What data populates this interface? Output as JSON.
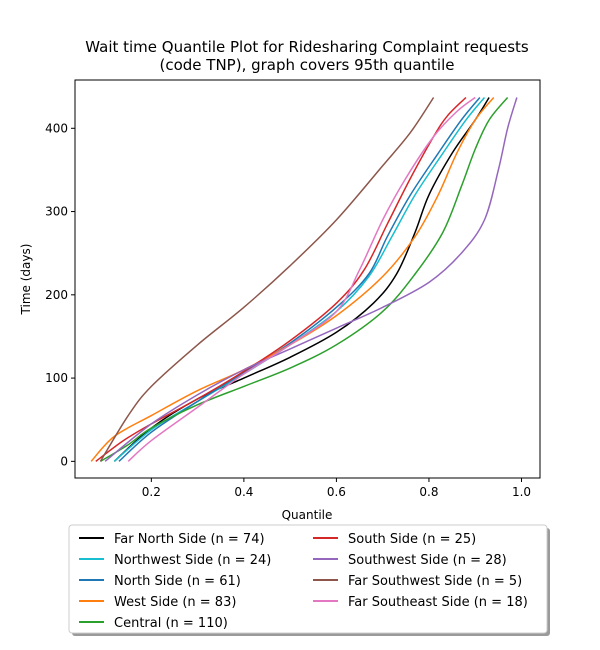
{
  "chart_data": {
    "type": "line",
    "title": [
      "Wait time Quantile Plot for Ridesharing Complaint  requests",
      "(code TNP), graph covers 95th quantile"
    ],
    "xlabel": "Quantile",
    "ylabel": "Time (days)",
    "xlim": [
      0.035,
      1.04
    ],
    "ylim": [
      -20,
      458
    ],
    "xticks": [
      0.2,
      0.4,
      0.6,
      0.8,
      1.0
    ],
    "xtick_labels": [
      "0.2",
      "0.4",
      "0.6",
      "0.8",
      "1.0"
    ],
    "yticks": [
      0,
      100,
      200,
      300,
      400
    ],
    "ytick_labels": [
      "0",
      "100",
      "200",
      "300",
      "400"
    ],
    "grid": false,
    "legend_position": "below",
    "series": [
      {
        "name": "Far North Side (n = 74)",
        "color": "#000000",
        "points": [
          [
            0.12,
            0
          ],
          [
            0.2,
            40
          ],
          [
            0.3,
            75
          ],
          [
            0.4,
            100
          ],
          [
            0.5,
            125
          ],
          [
            0.6,
            155
          ],
          [
            0.68,
            190
          ],
          [
            0.73,
            225
          ],
          [
            0.77,
            275
          ],
          [
            0.8,
            320
          ],
          [
            0.85,
            370
          ],
          [
            0.9,
            410
          ],
          [
            0.93,
            437
          ]
        ]
      },
      {
        "name": "Northwest Side (n = 24)",
        "color": "#17becf",
        "points": [
          [
            0.12,
            0
          ],
          [
            0.2,
            38
          ],
          [
            0.3,
            72
          ],
          [
            0.4,
            105
          ],
          [
            0.5,
            140
          ],
          [
            0.6,
            180
          ],
          [
            0.67,
            222
          ],
          [
            0.72,
            270
          ],
          [
            0.77,
            320
          ],
          [
            0.83,
            370
          ],
          [
            0.88,
            410
          ],
          [
            0.92,
            437
          ]
        ]
      },
      {
        "name": "North Side (n = 61)",
        "color": "#1f77b4",
        "points": [
          [
            0.13,
            0
          ],
          [
            0.2,
            35
          ],
          [
            0.3,
            72
          ],
          [
            0.4,
            107
          ],
          [
            0.5,
            142
          ],
          [
            0.6,
            185
          ],
          [
            0.67,
            225
          ],
          [
            0.71,
            270
          ],
          [
            0.76,
            320
          ],
          [
            0.82,
            370
          ],
          [
            0.87,
            410
          ],
          [
            0.91,
            437
          ]
        ]
      },
      {
        "name": "West Side (n = 83)",
        "color": "#ff7f0e",
        "points": [
          [
            0.07,
            0
          ],
          [
            0.12,
            30
          ],
          [
            0.2,
            55
          ],
          [
            0.3,
            85
          ],
          [
            0.4,
            110
          ],
          [
            0.5,
            140
          ],
          [
            0.6,
            175
          ],
          [
            0.7,
            222
          ],
          [
            0.77,
            270
          ],
          [
            0.82,
            320
          ],
          [
            0.86,
            370
          ],
          [
            0.9,
            410
          ],
          [
            0.94,
            437
          ]
        ]
      },
      {
        "name": "Central (n = 110)",
        "color": "#2ca02c",
        "points": [
          [
            0.09,
            0
          ],
          [
            0.15,
            20
          ],
          [
            0.2,
            40
          ],
          [
            0.3,
            68
          ],
          [
            0.4,
            90
          ],
          [
            0.5,
            112
          ],
          [
            0.6,
            140
          ],
          [
            0.7,
            180
          ],
          [
            0.77,
            225
          ],
          [
            0.83,
            275
          ],
          [
            0.87,
            330
          ],
          [
            0.9,
            375
          ],
          [
            0.93,
            410
          ],
          [
            0.97,
            437
          ]
        ]
      },
      {
        "name": "South Side (n = 25)",
        "color": "#d62728",
        "points": [
          [
            0.08,
            0
          ],
          [
            0.14,
            25
          ],
          [
            0.2,
            45
          ],
          [
            0.3,
            75
          ],
          [
            0.4,
            108
          ],
          [
            0.5,
            145
          ],
          [
            0.6,
            190
          ],
          [
            0.66,
            230
          ],
          [
            0.71,
            285
          ],
          [
            0.76,
            340
          ],
          [
            0.81,
            390
          ],
          [
            0.84,
            415
          ],
          [
            0.88,
            437
          ]
        ]
      },
      {
        "name": "Southwest Side (n = 28)",
        "color": "#9467bd",
        "points": [
          [
            0.1,
            0
          ],
          [
            0.2,
            45
          ],
          [
            0.3,
            80
          ],
          [
            0.4,
            110
          ],
          [
            0.5,
            135
          ],
          [
            0.6,
            160
          ],
          [
            0.7,
            185
          ],
          [
            0.8,
            215
          ],
          [
            0.87,
            250
          ],
          [
            0.92,
            290
          ],
          [
            0.95,
            350
          ],
          [
            0.97,
            400
          ],
          [
            0.99,
            437
          ]
        ]
      },
      {
        "name": "Far Southwest Side (n = 5)",
        "color": "#8c564b",
        "points": [
          [
            0.09,
            0
          ],
          [
            0.15,
            55
          ],
          [
            0.2,
            90
          ],
          [
            0.3,
            140
          ],
          [
            0.4,
            185
          ],
          [
            0.5,
            235
          ],
          [
            0.6,
            290
          ],
          [
            0.7,
            355
          ],
          [
            0.76,
            395
          ],
          [
            0.81,
            437
          ]
        ]
      },
      {
        "name": "Far Southeast Side (n = 18)",
        "color": "#e377c2",
        "points": [
          [
            0.15,
            0
          ],
          [
            0.2,
            25
          ],
          [
            0.3,
            65
          ],
          [
            0.4,
            105
          ],
          [
            0.5,
            140
          ],
          [
            0.6,
            180
          ],
          [
            0.65,
            230
          ],
          [
            0.7,
            290
          ],
          [
            0.75,
            340
          ],
          [
            0.81,
            390
          ],
          [
            0.86,
            420
          ],
          [
            0.9,
            437
          ]
        ]
      }
    ]
  }
}
